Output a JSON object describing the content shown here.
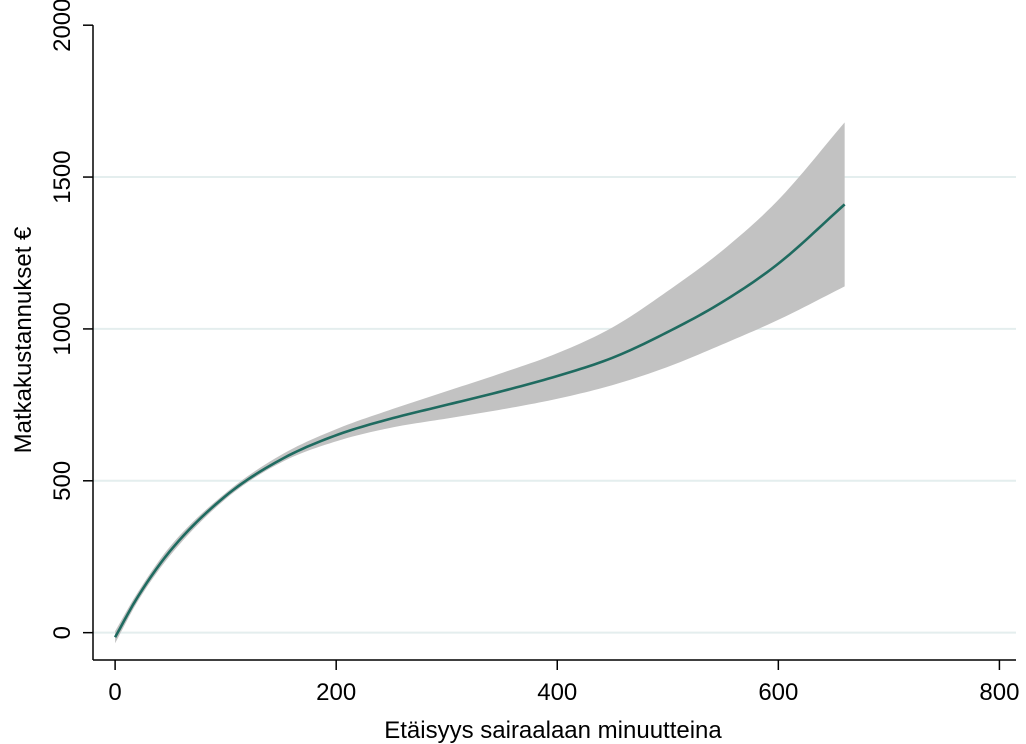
{
  "chart_data": {
    "type": "line",
    "xlabel": "Etäisyys sairaalaan minuutteina",
    "ylabel": "Matkakustannukset €",
    "xlim": [
      -20,
      815
    ],
    "ylim": [
      -90,
      2050
    ],
    "x_ticks": [
      0,
      200,
      400,
      600,
      800
    ],
    "y_ticks": [
      0,
      500,
      1000,
      1500,
      2000
    ],
    "x_tick_labels": [
      "0",
      "200",
      "400",
      "600",
      "800"
    ],
    "y_tick_labels": [
      "0",
      "500",
      "1000",
      "1500",
      "2000"
    ],
    "grid": "horizontal",
    "colors": {
      "line": "#1f6b60",
      "band": "#c2c2c2",
      "grid": "#e4eeee"
    },
    "series": [
      {
        "x": [
          0,
          20,
          50,
          100,
          150,
          200,
          250,
          300,
          350,
          400,
          450,
          500,
          550,
          600,
          660
        ],
        "y": [
          -15,
          115,
          270,
          450,
          570,
          650,
          705,
          750,
          795,
          845,
          905,
          990,
          1090,
          1215,
          1410
        ],
        "lower": [
          -35,
          100,
          255,
          440,
          560,
          630,
          675,
          705,
          735,
          770,
          815,
          875,
          950,
          1030,
          1140
        ],
        "upper": [
          5,
          130,
          285,
          460,
          585,
          670,
          735,
          795,
          855,
          920,
          1005,
          1125,
          1260,
          1425,
          1680
        ]
      }
    ]
  }
}
